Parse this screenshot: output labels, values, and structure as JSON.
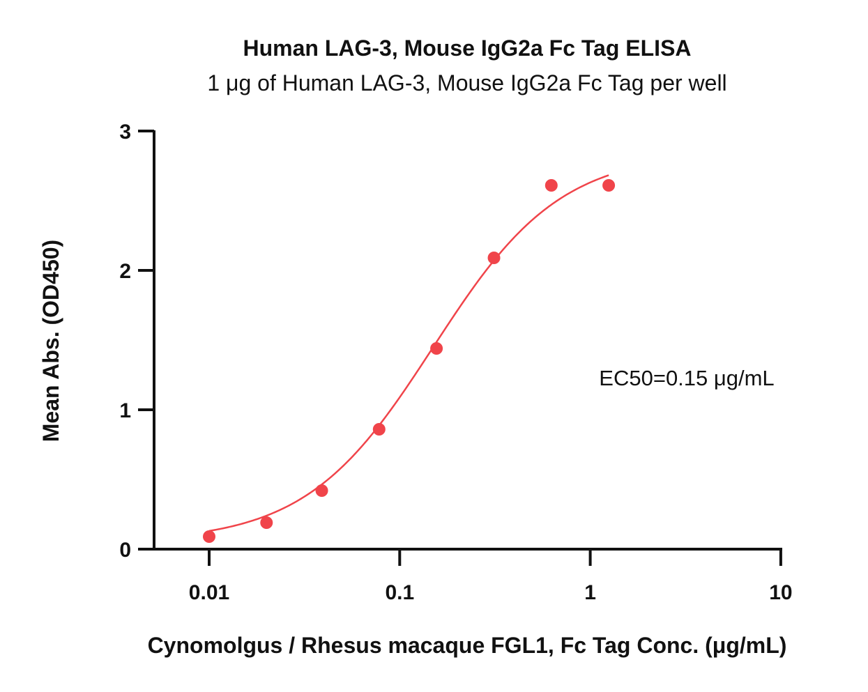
{
  "chart_data": {
    "type": "scatter",
    "title": "Human LAG-3, Mouse IgG2a Fc Tag ELISA",
    "subtitle": "1 μg of Human LAG-3, Mouse IgG2a Fc Tag per well",
    "xlabel": "Cynomolgus / Rhesus macaque FGL1, Fc Tag Conc. (μg/mL)",
    "ylabel": "Mean Abs. (OD450)",
    "x_scale": "log",
    "xlim": [
      0.005,
      10
    ],
    "ylim": [
      0,
      3
    ],
    "x_ticks": [
      0.01,
      0.1,
      1,
      10
    ],
    "x_tick_labels": [
      "0.01",
      "0.1",
      "1",
      "10"
    ],
    "y_ticks": [
      0,
      1,
      2,
      3
    ],
    "y_tick_labels": [
      "0",
      "1",
      "2",
      "3"
    ],
    "grid": false,
    "series": [
      {
        "color": "#f0444a",
        "x": [
          0.01,
          0.02,
          0.039,
          0.078,
          0.156,
          0.3125,
          0.625,
          1.25
        ],
        "y": [
          0.09,
          0.19,
          0.42,
          0.86,
          1.44,
          2.09,
          2.61,
          2.61
        ]
      }
    ],
    "fit_curve": {
      "model": "4PL",
      "bottom": 0.05,
      "top": 2.85,
      "ec50": 0.15,
      "hill": 1.3,
      "x_range": [
        0.01,
        1.25
      ],
      "color": "#f0444a"
    },
    "annotation": "EC50=0.15 μg/mL"
  }
}
